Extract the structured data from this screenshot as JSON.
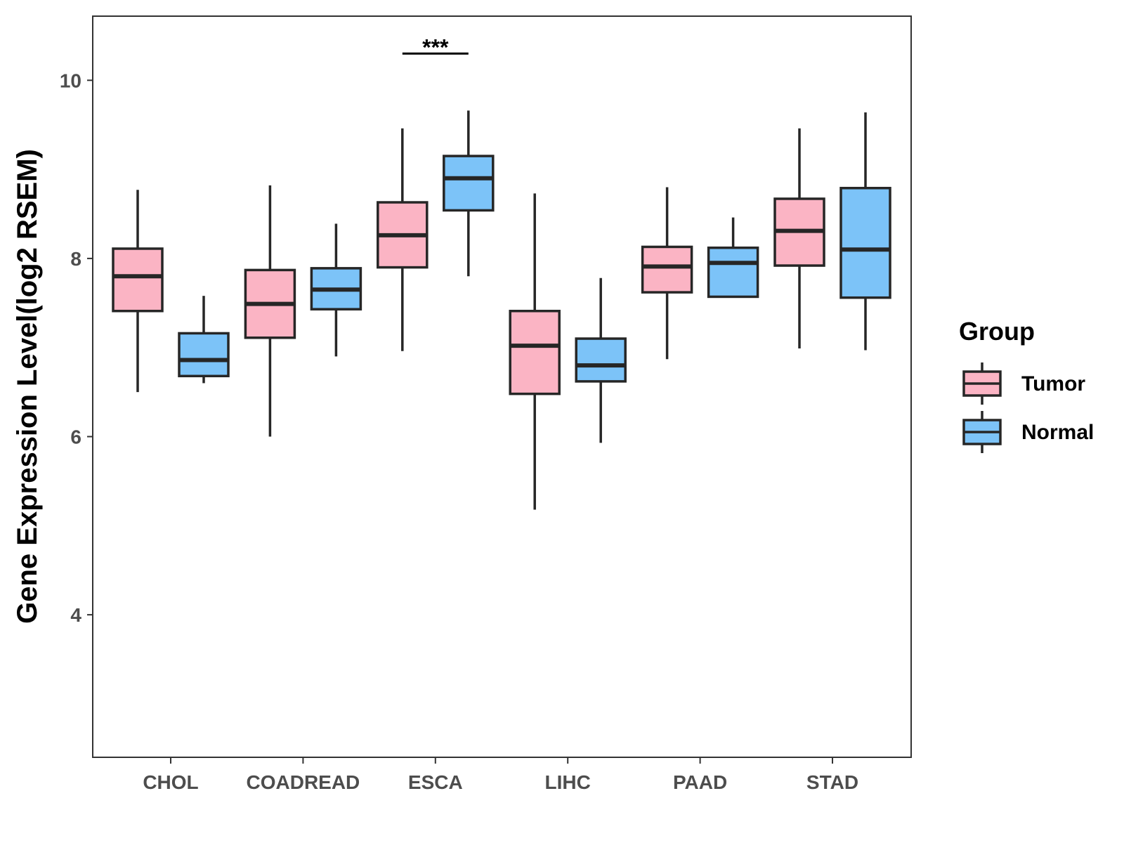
{
  "chart_data": {
    "type": "boxplot",
    "title": "",
    "xlabel": "",
    "ylabel": "Gene Expression Level(log2 RSEM)",
    "ylim": [
      2.4,
      10.72
    ],
    "yticks": [
      4,
      6,
      8,
      10
    ],
    "grid": false,
    "categories": [
      "CHOL",
      "COADREAD",
      "ESCA",
      "LIHC",
      "PAAD",
      "STAD"
    ],
    "legend": {
      "title": "Group",
      "position": "right",
      "entries": [
        {
          "name": "Tumor",
          "color": "#FBB4C4"
        },
        {
          "name": "Normal",
          "color": "#7CC3F8"
        }
      ]
    },
    "series": [
      {
        "name": "Tumor",
        "color": "#FBB4C4",
        "boxes": [
          {
            "category": "CHOL",
            "whisker_low": 6.5,
            "q1": 7.41,
            "median": 7.8,
            "q3": 8.11,
            "whisker_high": 8.77
          },
          {
            "category": "COADREAD",
            "whisker_low": 6.0,
            "q1": 7.11,
            "median": 7.49,
            "q3": 7.87,
            "whisker_high": 8.82
          },
          {
            "category": "ESCA",
            "whisker_low": 6.96,
            "q1": 7.9,
            "median": 8.26,
            "q3": 8.63,
            "whisker_high": 9.46
          },
          {
            "category": "LIHC",
            "whisker_low": 5.18,
            "q1": 6.48,
            "median": 7.02,
            "q3": 7.41,
            "whisker_high": 8.73
          },
          {
            "category": "PAAD",
            "whisker_low": 6.87,
            "q1": 7.62,
            "median": 7.91,
            "q3": 8.13,
            "whisker_high": 8.8
          },
          {
            "category": "STAD",
            "whisker_low": 6.99,
            "q1": 7.92,
            "median": 8.31,
            "q3": 8.67,
            "whisker_high": 9.46
          }
        ]
      },
      {
        "name": "Normal",
        "color": "#7CC3F8",
        "boxes": [
          {
            "category": "CHOL",
            "whisker_low": 6.6,
            "q1": 6.68,
            "median": 6.86,
            "q3": 7.16,
            "whisker_high": 7.58
          },
          {
            "category": "COADREAD",
            "whisker_low": 6.9,
            "q1": 7.43,
            "median": 7.65,
            "q3": 7.89,
            "whisker_high": 8.39
          },
          {
            "category": "ESCA",
            "whisker_low": 7.8,
            "q1": 8.54,
            "median": 8.9,
            "q3": 9.15,
            "whisker_high": 9.66
          },
          {
            "category": "LIHC",
            "whisker_low": 5.93,
            "q1": 6.62,
            "median": 6.8,
            "q3": 7.1,
            "whisker_high": 7.78
          },
          {
            "category": "PAAD",
            "whisker_low": 7.56,
            "q1": 7.57,
            "median": 7.95,
            "q3": 8.12,
            "whisker_high": 8.46
          },
          {
            "category": "STAD",
            "whisker_low": 6.97,
            "q1": 7.56,
            "median": 8.1,
            "q3": 8.79,
            "whisker_high": 9.64
          }
        ]
      }
    ],
    "annotations": [
      {
        "category": "ESCA",
        "text": "***",
        "y": 10.3
      }
    ]
  }
}
